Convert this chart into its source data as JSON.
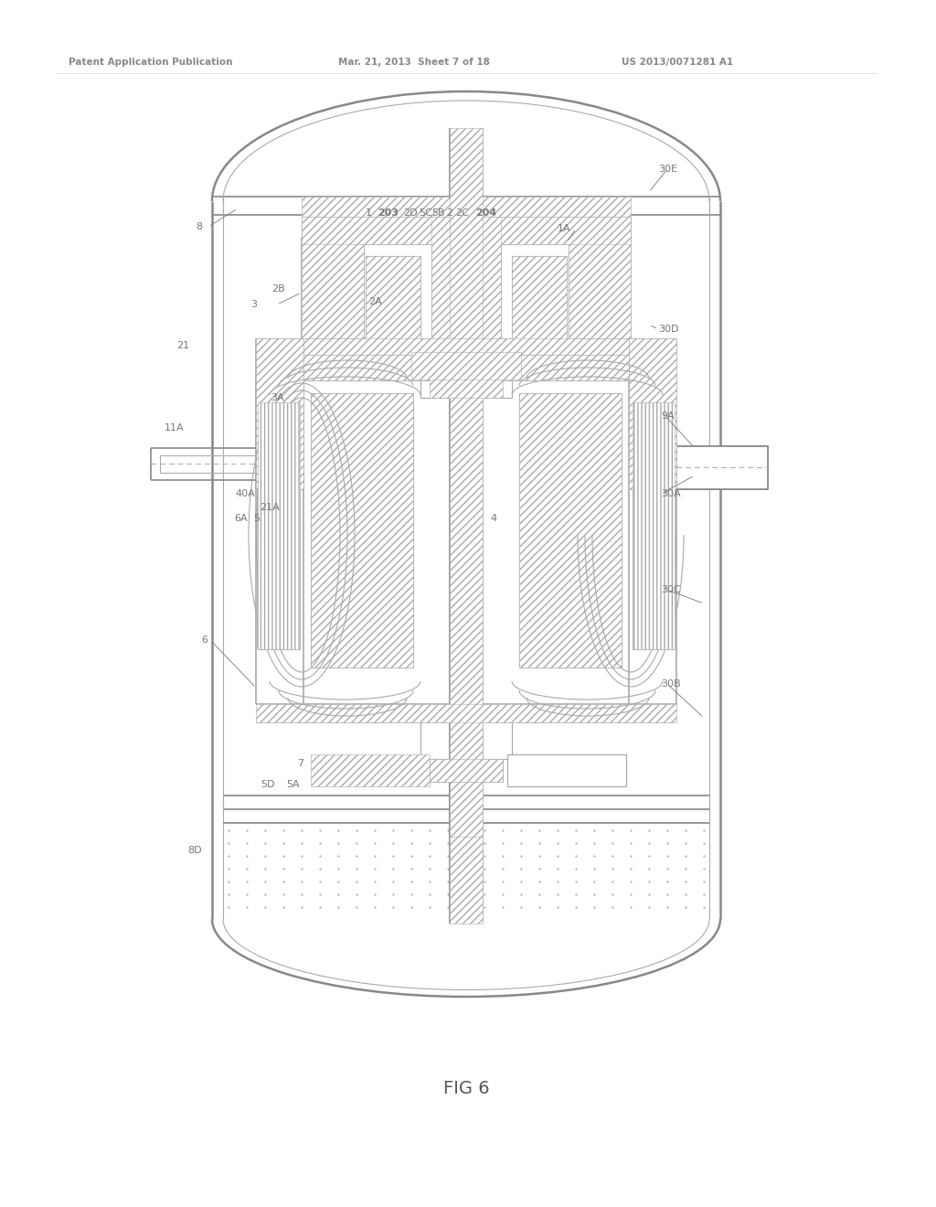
{
  "bg_color": "#ffffff",
  "lc": "#aaaaaa",
  "lc_dark": "#888888",
  "header_color": "#888888",
  "label_color": "#777777",
  "header_text": "Patent Application Publication",
  "header_date": "Mar. 21, 2013  Sheet 7 of 18",
  "header_patent": "US 2013/0071281 A1",
  "figure_label": "FIG 6"
}
